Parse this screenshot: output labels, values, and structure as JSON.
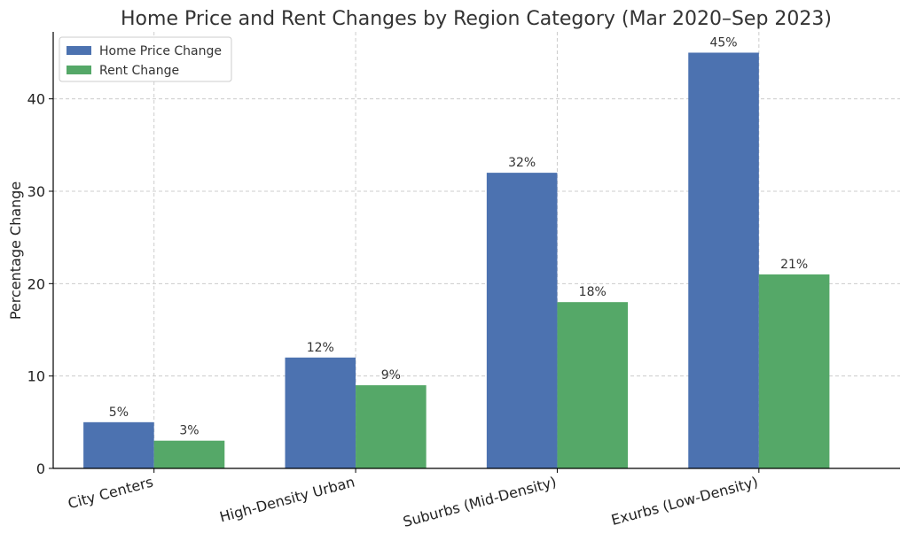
{
  "chart_data": {
    "type": "bar",
    "title": "Home Price and Rent Changes by Region Category (Mar 2020–Sep 2023)",
    "xlabel": "",
    "ylabel": "Percentage Change",
    "categories": [
      "City Centers",
      "High-Density Urban",
      "Suburbs (Mid-Density)",
      "Exurbs (Low-Density)"
    ],
    "series": [
      {
        "name": "Home Price Change",
        "values": [
          5,
          12,
          32,
          45
        ],
        "labels": [
          "5%",
          "12%",
          "32%",
          "45%"
        ],
        "color": "#4c72b0"
      },
      {
        "name": "Rent Change",
        "values": [
          3,
          9,
          18,
          21
        ],
        "labels": [
          "3%",
          "9%",
          "18%",
          "21%"
        ],
        "color": "#55a868"
      }
    ],
    "ylim": [
      0,
      47.25
    ],
    "yticks": [
      0,
      10,
      20,
      30,
      40
    ],
    "grid": true,
    "legend_position": "top-left"
  }
}
